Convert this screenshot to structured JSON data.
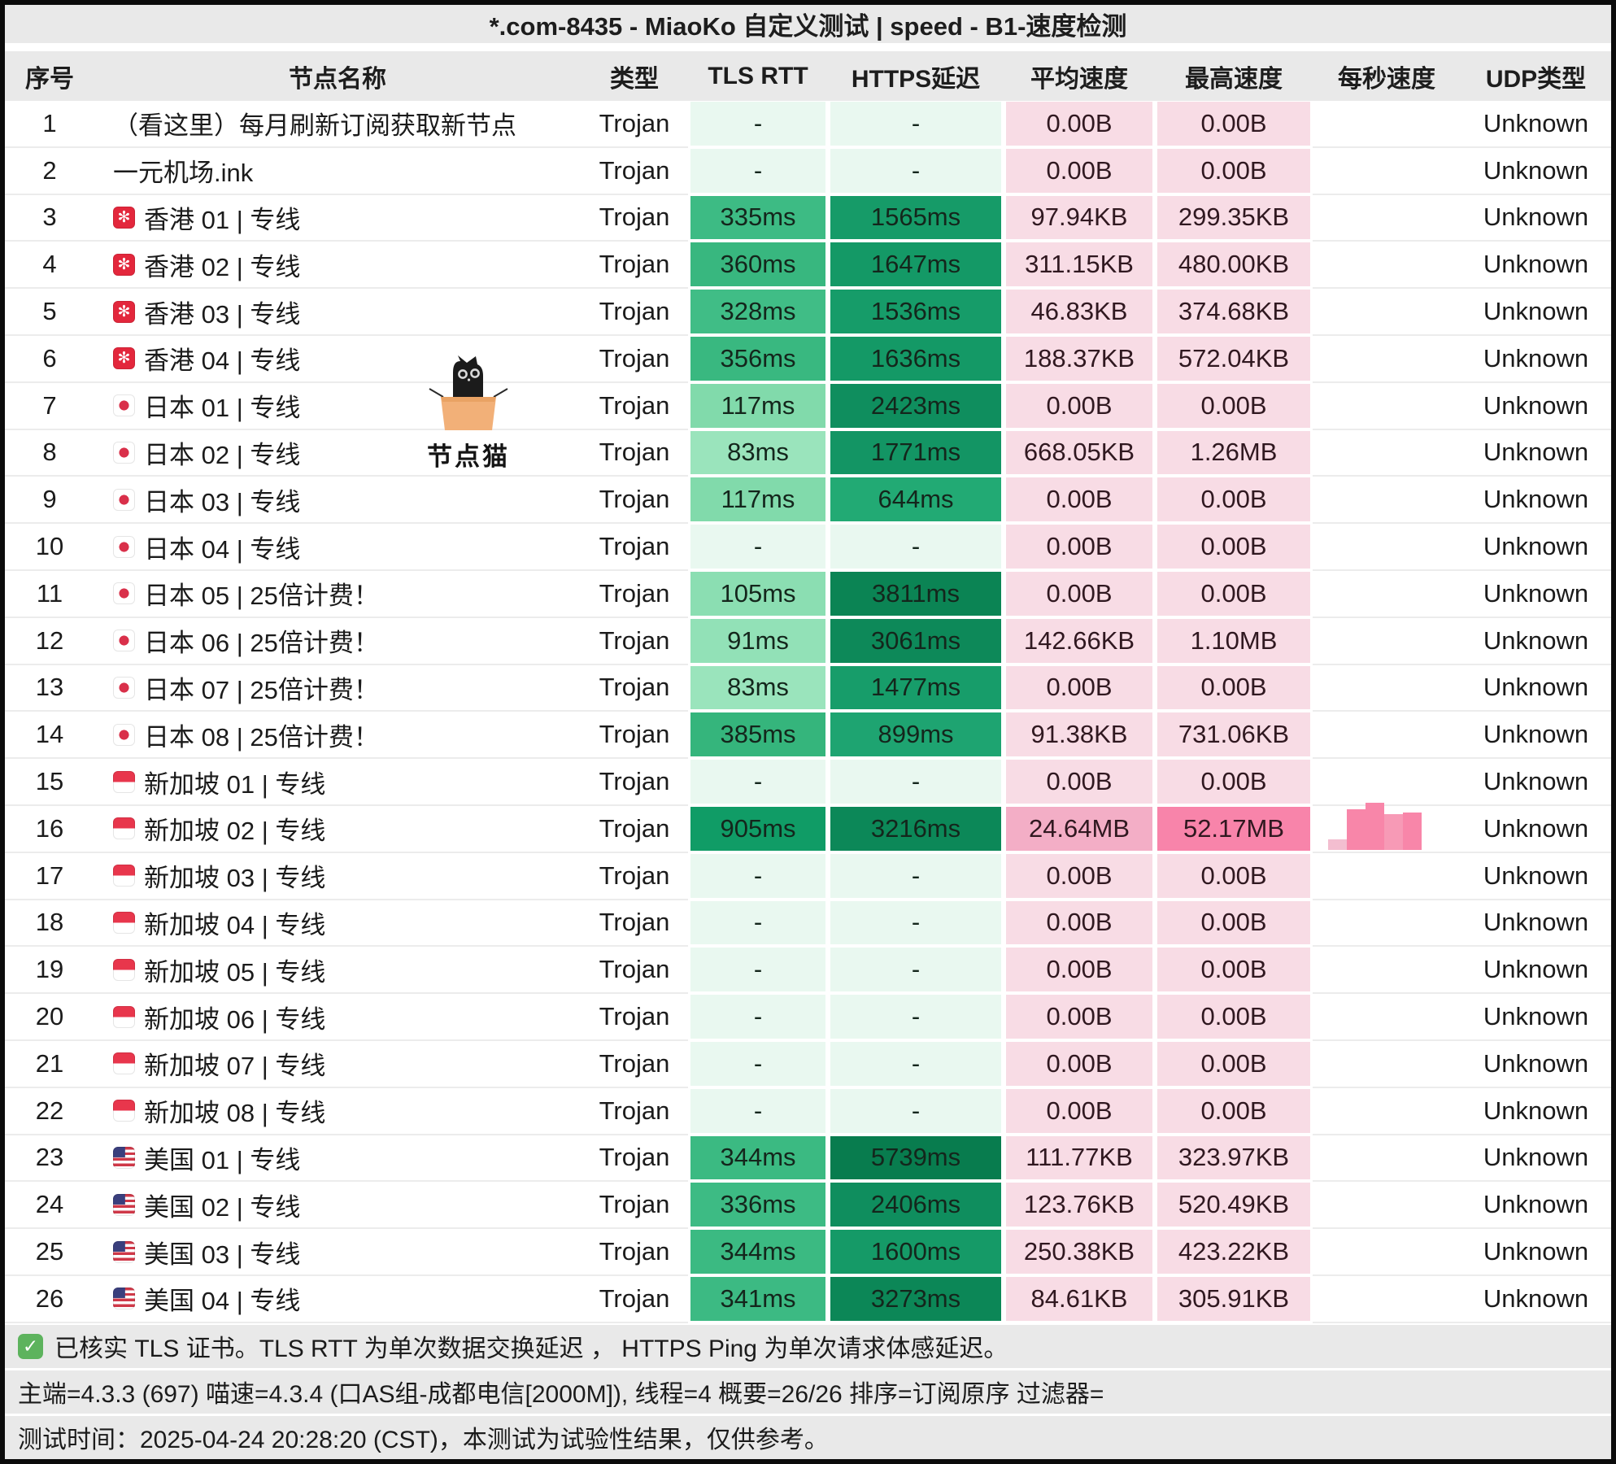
{
  "title": "*.com-8435 - MiaoKo 自定义测试 | speed - B1-速度检测",
  "columns": [
    "序号",
    "节点名称",
    "类型",
    "TLS RTT",
    "HTTPS延迟",
    "平均速度",
    "最高速度",
    "每秒速度",
    "UDP类型"
  ],
  "watermark": {
    "label": "节点猫"
  },
  "rows": [
    {
      "no": "1",
      "name": "（看这里）每月刷新订阅获取新节点",
      "flag": "none",
      "type": "Trojan",
      "tls": "-",
      "tls_bg": "#e9f8f0",
      "https": "-",
      "https_bg": "#e9f8f0",
      "avg": "0.00B",
      "avg_bg": "#f8dce5",
      "max": "0.00B",
      "max_bg": "#f8dce5",
      "speed_bars": null,
      "udp": "Unknown"
    },
    {
      "no": "2",
      "name": "一元机场.ink",
      "flag": "none",
      "type": "Trojan",
      "tls": "-",
      "tls_bg": "#e9f8f0",
      "https": "-",
      "https_bg": "#e9f8f0",
      "avg": "0.00B",
      "avg_bg": "#f8dce5",
      "max": "0.00B",
      "max_bg": "#f8dce5",
      "speed_bars": null,
      "udp": "Unknown"
    },
    {
      "no": "3",
      "name": "香港 01 | 专线",
      "flag": "hk",
      "type": "Trojan",
      "tls": "335ms",
      "tls_bg": "#3dbb84",
      "https": "1565ms",
      "https_bg": "#169b68",
      "avg": "97.94KB",
      "avg_bg": "#f8dce5",
      "max": "299.35KB",
      "max_bg": "#f8dce5",
      "speed_bars": null,
      "udp": "Unknown"
    },
    {
      "no": "4",
      "name": "香港 02 | 专线",
      "flag": "hk",
      "type": "Trojan",
      "tls": "360ms",
      "tls_bg": "#38b77f",
      "https": "1647ms",
      "https_bg": "#149966",
      "avg": "311.15KB",
      "avg_bg": "#f8dce5",
      "max": "480.00KB",
      "max_bg": "#f8dce5",
      "speed_bars": null,
      "udp": "Unknown"
    },
    {
      "no": "5",
      "name": "香港 03 | 专线",
      "flag": "hk",
      "type": "Trojan",
      "tls": "328ms",
      "tls_bg": "#40bd86",
      "https": "1536ms",
      "https_bg": "#169c69",
      "avg": "46.83KB",
      "avg_bg": "#f8dce5",
      "max": "374.68KB",
      "max_bg": "#f8dce5",
      "speed_bars": null,
      "udp": "Unknown"
    },
    {
      "no": "6",
      "name": "香港 04 | 专线",
      "flag": "hk",
      "type": "Trojan",
      "tls": "356ms",
      "tls_bg": "#39b880",
      "https": "1636ms",
      "https_bg": "#149966",
      "avg": "188.37KB",
      "avg_bg": "#f8dce5",
      "max": "572.04KB",
      "max_bg": "#f8dce5",
      "speed_bars": null,
      "udp": "Unknown"
    },
    {
      "no": "7",
      "name": "日本 01 | 专线",
      "flag": "jp",
      "type": "Trojan",
      "tls": "117ms",
      "tls_bg": "#81daab",
      "https": "2423ms",
      "https_bg": "#0f8e5e",
      "avg": "0.00B",
      "avg_bg": "#f8dce5",
      "max": "0.00B",
      "max_bg": "#f8dce5",
      "speed_bars": null,
      "udp": "Unknown"
    },
    {
      "no": "8",
      "name": "日本 02 | 专线",
      "flag": "jp",
      "type": "Trojan",
      "tls": "83ms",
      "tls_bg": "#9ae4bc",
      "https": "1771ms",
      "https_bg": "#139564",
      "avg": "668.05KB",
      "avg_bg": "#f8dce5",
      "max": "1.26MB",
      "max_bg": "#f8dce5",
      "speed_bars": null,
      "udp": "Unknown"
    },
    {
      "no": "9",
      "name": "日本 03 | 专线",
      "flag": "jp",
      "type": "Trojan",
      "tls": "117ms",
      "tls_bg": "#81daab",
      "https": "644ms",
      "https_bg": "#22aa74",
      "avg": "0.00B",
      "avg_bg": "#f8dce5",
      "max": "0.00B",
      "max_bg": "#f8dce5",
      "speed_bars": null,
      "udp": "Unknown"
    },
    {
      "no": "10",
      "name": "日本 04 | 专线",
      "flag": "jp",
      "type": "Trojan",
      "tls": "-",
      "tls_bg": "#e9f8f0",
      "https": "-",
      "https_bg": "#e9f8f0",
      "avg": "0.00B",
      "avg_bg": "#f8dce5",
      "max": "0.00B",
      "max_bg": "#f8dce5",
      "speed_bars": null,
      "udp": "Unknown"
    },
    {
      "no": "11",
      "name": "日本 05 | 25倍计费！",
      "flag": "jp",
      "type": "Trojan",
      "tls": "105ms",
      "tls_bg": "#8bdeb2",
      "https": "3811ms",
      "https_bg": "#0b8454",
      "avg": "0.00B",
      "avg_bg": "#f8dce5",
      "max": "0.00B",
      "max_bg": "#f8dce5",
      "speed_bars": null,
      "udp": "Unknown"
    },
    {
      "no": "12",
      "name": "日本 06 | 25倍计费！",
      "flag": "jp",
      "type": "Trojan",
      "tls": "91ms",
      "tls_bg": "#92e1b7",
      "https": "3061ms",
      "https_bg": "#0d8959",
      "avg": "142.66KB",
      "avg_bg": "#f8dce5",
      "max": "1.10MB",
      "max_bg": "#f8dce5",
      "speed_bars": null,
      "udp": "Unknown"
    },
    {
      "no": "13",
      "name": "日本 07 | 25倍计费！",
      "flag": "jp",
      "type": "Trojan",
      "tls": "83ms",
      "tls_bg": "#9ae4bc",
      "https": "1477ms",
      "https_bg": "#179d6a",
      "avg": "0.00B",
      "avg_bg": "#f8dce5",
      "max": "0.00B",
      "max_bg": "#f8dce5",
      "speed_bars": null,
      "udp": "Unknown"
    },
    {
      "no": "14",
      "name": "日本 08 | 25倍计费！",
      "flag": "jp",
      "type": "Trojan",
      "tls": "385ms",
      "tls_bg": "#35b57c",
      "https": "899ms",
      "https_bg": "#1ea471",
      "avg": "91.38KB",
      "avg_bg": "#f8dce5",
      "max": "731.06KB",
      "max_bg": "#f8dce5",
      "speed_bars": null,
      "udp": "Unknown"
    },
    {
      "no": "15",
      "name": "新加坡 01 | 专线",
      "flag": "sg",
      "type": "Trojan",
      "tls": "-",
      "tls_bg": "#e9f8f0",
      "https": "-",
      "https_bg": "#e9f8f0",
      "avg": "0.00B",
      "avg_bg": "#f8dce5",
      "max": "0.00B",
      "max_bg": "#f8dce5",
      "speed_bars": null,
      "udp": "Unknown"
    },
    {
      "no": "16",
      "name": "新加坡 02 | 专线",
      "flag": "sg",
      "type": "Trojan",
      "tls": "905ms",
      "tls_bg": "#109c66",
      "https": "3216ms",
      "https_bg": "#0c8858",
      "avg": "24.64MB",
      "avg_bg": "#f3aec6",
      "max": "52.17MB",
      "max_bg": "#f884aa",
      "speed_bars": {
        "heights": [
          13,
          50,
          58,
          44,
          46
        ],
        "colors": [
          "#f3bed0",
          "#f886a9",
          "#f886a9",
          "#f79ab6",
          "#f886a9"
        ]
      },
      "udp": "Unknown"
    },
    {
      "no": "17",
      "name": "新加坡 03 | 专线",
      "flag": "sg",
      "type": "Trojan",
      "tls": "-",
      "tls_bg": "#e9f8f0",
      "https": "-",
      "https_bg": "#e9f8f0",
      "avg": "0.00B",
      "avg_bg": "#f8dce5",
      "max": "0.00B",
      "max_bg": "#f8dce5",
      "speed_bars": null,
      "udp": "Unknown"
    },
    {
      "no": "18",
      "name": "新加坡 04 | 专线",
      "flag": "sg",
      "type": "Trojan",
      "tls": "-",
      "tls_bg": "#e9f8f0",
      "https": "-",
      "https_bg": "#e9f8f0",
      "avg": "0.00B",
      "avg_bg": "#f8dce5",
      "max": "0.00B",
      "max_bg": "#f8dce5",
      "speed_bars": null,
      "udp": "Unknown"
    },
    {
      "no": "19",
      "name": "新加坡 05 | 专线",
      "flag": "sg",
      "type": "Trojan",
      "tls": "-",
      "tls_bg": "#e9f8f0",
      "https": "-",
      "https_bg": "#e9f8f0",
      "avg": "0.00B",
      "avg_bg": "#f8dce5",
      "max": "0.00B",
      "max_bg": "#f8dce5",
      "speed_bars": null,
      "udp": "Unknown"
    },
    {
      "no": "20",
      "name": "新加坡 06 | 专线",
      "flag": "sg",
      "type": "Trojan",
      "tls": "-",
      "tls_bg": "#e9f8f0",
      "https": "-",
      "https_bg": "#e9f8f0",
      "avg": "0.00B",
      "avg_bg": "#f8dce5",
      "max": "0.00B",
      "max_bg": "#f8dce5",
      "speed_bars": null,
      "udp": "Unknown"
    },
    {
      "no": "21",
      "name": "新加坡 07 | 专线",
      "flag": "sg",
      "type": "Trojan",
      "tls": "-",
      "tls_bg": "#e9f8f0",
      "https": "-",
      "https_bg": "#e9f8f0",
      "avg": "0.00B",
      "avg_bg": "#f8dce5",
      "max": "0.00B",
      "max_bg": "#f8dce5",
      "speed_bars": null,
      "udp": "Unknown"
    },
    {
      "no": "22",
      "name": "新加坡 08 | 专线",
      "flag": "sg",
      "type": "Trojan",
      "tls": "-",
      "tls_bg": "#e9f8f0",
      "https": "-",
      "https_bg": "#e9f8f0",
      "avg": "0.00B",
      "avg_bg": "#f8dce5",
      "max": "0.00B",
      "max_bg": "#f8dce5",
      "speed_bars": null,
      "udp": "Unknown"
    },
    {
      "no": "23",
      "name": "美国 01 | 专线",
      "flag": "us",
      "type": "Trojan",
      "tls": "344ms",
      "tls_bg": "#3bba82",
      "https": "5739ms",
      "https_bg": "#087c4e",
      "avg": "111.77KB",
      "avg_bg": "#f8dce5",
      "max": "323.97KB",
      "max_bg": "#f8dce5",
      "speed_bars": null,
      "udp": "Unknown"
    },
    {
      "no": "24",
      "name": "美国 02 | 专线",
      "flag": "us",
      "type": "Trojan",
      "tls": "336ms",
      "tls_bg": "#3dbb84",
      "https": "2406ms",
      "https_bg": "#0f8e5e",
      "avg": "123.76KB",
      "avg_bg": "#f8dce5",
      "max": "520.49KB",
      "max_bg": "#f8dce5",
      "speed_bars": null,
      "udp": "Unknown"
    },
    {
      "no": "25",
      "name": "美国 03 | 专线",
      "flag": "us",
      "type": "Trojan",
      "tls": "344ms",
      "tls_bg": "#3bba82",
      "https": "1600ms",
      "https_bg": "#159a67",
      "avg": "250.38KB",
      "avg_bg": "#f8dce5",
      "max": "423.22KB",
      "max_bg": "#f8dce5",
      "speed_bars": null,
      "udp": "Unknown"
    },
    {
      "no": "26",
      "name": "美国 04 | 专线",
      "flag": "us",
      "type": "Trojan",
      "tls": "341ms",
      "tls_bg": "#3cba83",
      "https": "3273ms",
      "https_bg": "#0c8757",
      "avg": "84.61KB",
      "avg_bg": "#f8dce5",
      "max": "305.91KB",
      "max_bg": "#f8dce5",
      "speed_bars": null,
      "udp": "Unknown"
    }
  ],
  "footer": {
    "check_mark": "✓",
    "note": "已核实 TLS 证书。TLS RTT 为单次数据交换延迟 ， HTTPS Ping 为单次请求体感延迟。",
    "stats": "主端=4.3.3 (697) 喵速=4.3.4 (口AS组-成都电信[2000M]), 线程=4 概要=26/26 排序=订阅原序 过滤器=",
    "time": "测试时间：2025-04-24 20:28:20 (CST)，本测试为试验性结果，仅供参考。"
  }
}
